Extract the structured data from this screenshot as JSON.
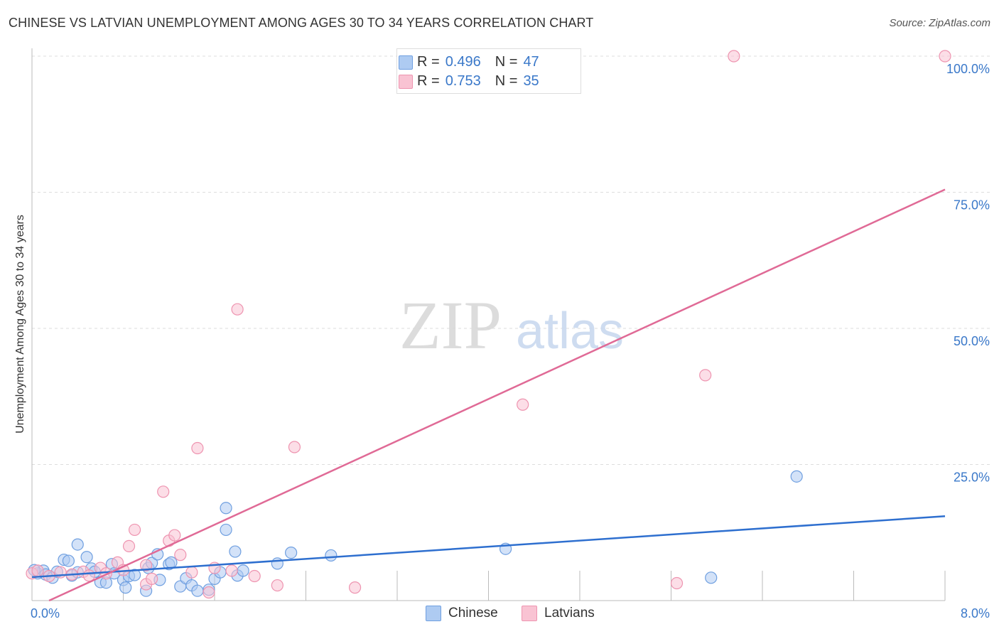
{
  "header": {
    "title": "CHINESE VS LATVIAN UNEMPLOYMENT AMONG AGES 30 TO 34 YEARS CORRELATION CHART",
    "source": "Source: ZipAtlas.com"
  },
  "watermark": {
    "zip": "ZIP",
    "atlas": "atlas"
  },
  "legend": {
    "items": [
      {
        "r_label": "R =",
        "r_value": "0.496",
        "n_label": "N =",
        "n_value": "47"
      },
      {
        "r_label": "R =",
        "r_value": "0.753",
        "n_label": "N =",
        "n_value": "35"
      }
    ]
  },
  "colors": {
    "chinese_fill": "#aecbf2",
    "chinese_stroke": "#6f9fe0",
    "chinese_line": "#2e6fcf",
    "latvian_fill": "#f9c3d3",
    "latvian_stroke": "#ee94b0",
    "latvian_line": "#e06a96",
    "tick_text": "#3a78c9",
    "grid": "#dddddd"
  },
  "chart_data": {
    "type": "scatter",
    "title": "CHINESE VS LATVIAN UNEMPLOYMENT AMONG AGES 30 TO 34 YEARS CORRELATION CHART",
    "xlabel": "",
    "ylabel": "Unemployment Among Ages 30 to 34 years",
    "xlim": [
      0,
      8
    ],
    "ylim": [
      0,
      100
    ],
    "x_tick_labels": [
      "0.0%",
      "8.0%"
    ],
    "y_tick_labels": [
      "100.0%",
      "75.0%",
      "50.0%",
      "25.0%"
    ],
    "y_ticks": [
      100,
      75,
      50,
      25
    ],
    "grid": true,
    "legend_position": "top-center",
    "series": [
      {
        "name": "Chinese",
        "r": 0.496,
        "n": 47,
        "trend": {
          "x": [
            0,
            8
          ],
          "y": [
            4.3,
            15.5
          ]
        },
        "points": [
          [
            0.05,
            5.0
          ],
          [
            0.1,
            5.5
          ],
          [
            0.12,
            4.8
          ],
          [
            0.18,
            4.2
          ],
          [
            0.22,
            5.3
          ],
          [
            0.28,
            7.5
          ],
          [
            0.32,
            7.3
          ],
          [
            0.35,
            4.6
          ],
          [
            0.4,
            5.2
          ],
          [
            0.4,
            10.3
          ],
          [
            0.48,
            8.0
          ],
          [
            0.52,
            5.9
          ],
          [
            0.55,
            5.3
          ],
          [
            0.6,
            3.4
          ],
          [
            0.65,
            3.3
          ],
          [
            0.7,
            6.7
          ],
          [
            0.72,
            5.0
          ],
          [
            0.8,
            3.8
          ],
          [
            0.82,
            2.4
          ],
          [
            0.85,
            4.5
          ],
          [
            0.9,
            4.7
          ],
          [
            1.0,
            1.8
          ],
          [
            1.02,
            6.0
          ],
          [
            1.05,
            6.9
          ],
          [
            1.1,
            8.5
          ],
          [
            1.12,
            3.8
          ],
          [
            1.2,
            6.7
          ],
          [
            1.22,
            7.0
          ],
          [
            1.3,
            2.6
          ],
          [
            1.35,
            4.1
          ],
          [
            1.4,
            2.8
          ],
          [
            1.45,
            1.8
          ],
          [
            1.55,
            2.0
          ],
          [
            1.6,
            4.0
          ],
          [
            1.65,
            5.2
          ],
          [
            1.7,
            17.0
          ],
          [
            1.7,
            13.0
          ],
          [
            1.78,
            9.0
          ],
          [
            1.8,
            4.6
          ],
          [
            1.85,
            5.5
          ],
          [
            2.15,
            6.8
          ],
          [
            2.27,
            8.8
          ],
          [
            2.62,
            8.3
          ],
          [
            4.15,
            9.5
          ],
          [
            5.95,
            4.2
          ],
          [
            6.7,
            22.8
          ],
          [
            0.02,
            5.6
          ]
        ]
      },
      {
        "name": "Latvians",
        "r": 0.753,
        "n": 35,
        "trend": {
          "x": [
            0.15,
            8
          ],
          "y": [
            0,
            75.5
          ]
        },
        "points": [
          [
            0.0,
            5.0
          ],
          [
            0.05,
            5.5
          ],
          [
            0.15,
            4.5
          ],
          [
            0.25,
            5.2
          ],
          [
            0.35,
            4.8
          ],
          [
            0.45,
            5.3
          ],
          [
            0.5,
            4.6
          ],
          [
            0.6,
            6.0
          ],
          [
            0.65,
            5.0
          ],
          [
            0.75,
            7.0
          ],
          [
            0.8,
            5.6
          ],
          [
            0.85,
            10.0
          ],
          [
            0.9,
            13.0
          ],
          [
            1.0,
            3.0
          ],
          [
            1.05,
            4.0
          ],
          [
            1.15,
            20.0
          ],
          [
            1.2,
            11.0
          ],
          [
            1.25,
            12.0
          ],
          [
            1.3,
            8.4
          ],
          [
            1.4,
            5.2
          ],
          [
            1.45,
            28.0
          ],
          [
            1.55,
            1.5
          ],
          [
            1.6,
            6.0
          ],
          [
            1.75,
            5.5
          ],
          [
            1.8,
            53.5
          ],
          [
            1.95,
            4.5
          ],
          [
            2.15,
            2.8
          ],
          [
            2.3,
            28.2
          ],
          [
            2.83,
            2.4
          ],
          [
            4.3,
            36.0
          ],
          [
            5.65,
            3.2
          ],
          [
            5.9,
            41.4
          ],
          [
            6.15,
            100.0
          ],
          [
            8.0,
            100.0
          ],
          [
            1.0,
            6.5
          ]
        ]
      }
    ]
  },
  "bottom_legend": [
    {
      "name": "Chinese"
    },
    {
      "name": "Latvians"
    }
  ]
}
